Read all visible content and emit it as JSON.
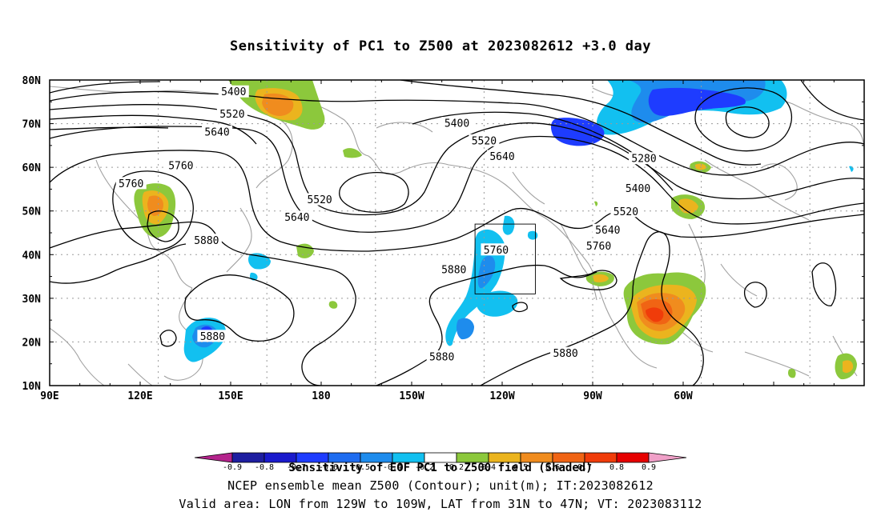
{
  "title": "Sensitivity of PC1 to Z500 at 2023082612 +3.0 day",
  "map": {
    "lat_labels": [
      "80N",
      "70N",
      "60N",
      "50N",
      "40N",
      "30N",
      "20N",
      "10N"
    ],
    "lon_labels": [
      "90E",
      "120E",
      "150E",
      "180",
      "150W",
      "120W",
      "90W",
      "60W"
    ],
    "contour_labels": [
      {
        "text": "5400",
        "lon": 151,
        "lat": 77.3
      },
      {
        "text": "5520",
        "lon": 150.5,
        "lat": 72.2
      },
      {
        "text": "5640",
        "lon": 145.5,
        "lat": 68.1
      },
      {
        "text": "5760",
        "lon": 133.5,
        "lat": 60.4
      },
      {
        "text": "5760",
        "lon": 117,
        "lat": 56.3
      },
      {
        "text": "5880",
        "lon": 142,
        "lat": 43.3
      },
      {
        "text": "5520",
        "lon": 179.5,
        "lat": 52.6
      },
      {
        "text": "5640",
        "lon": 172,
        "lat": 48.6
      },
      {
        "text": "5400",
        "lon": -135,
        "lat": 70.1
      },
      {
        "text": "5520",
        "lon": -126,
        "lat": 66.1
      },
      {
        "text": "5640",
        "lon": -120,
        "lat": 62.5
      },
      {
        "text": "5880",
        "lon": -136,
        "lat": 36.6
      },
      {
        "text": "5760",
        "lon": -122,
        "lat": 41.1
      },
      {
        "text": "5280",
        "lon": -73,
        "lat": 62.0
      },
      {
        "text": "5400",
        "lon": -75,
        "lat": 55.2
      },
      {
        "text": "5520",
        "lon": -79,
        "lat": 49.9
      },
      {
        "text": "5640",
        "lon": -85,
        "lat": 45.6
      },
      {
        "text": "5760",
        "lon": -88,
        "lat": 42.0
      },
      {
        "text": "5880",
        "lon": 144,
        "lat": 21.3
      },
      {
        "text": "5880",
        "lon": -140,
        "lat": 16.6
      },
      {
        "text": "5880",
        "lon": -99,
        "lat": 17.4
      }
    ],
    "valid_box": {
      "lon_from": -129,
      "lon_to": -109,
      "lat_from": 31,
      "lat_to": 47
    }
  },
  "colorbar": {
    "values": [
      "-0.9",
      "-0.8",
      "-0.7",
      "-0.6",
      "-0.5",
      "-0.4",
      "-0.2",
      "0.2",
      "0.4",
      "0.5",
      "0.6",
      "0.7",
      "0.8",
      "0.9"
    ],
    "colors": [
      "#1e1ea0",
      "#1a1acc",
      "#1e3cff",
      "#1e6cf0",
      "#1e8ced",
      "#12c0f0",
      "#ffffff",
      "#8cc83c",
      "#ebb41e",
      "#f08c1e",
      "#f06414",
      "#f03c0a",
      "#e60000"
    ],
    "under_color": "#b4238c",
    "over_color": "#f0a0c8",
    "caption": "Sensitivity of EOF PC1 to Z500 field (Shaded)"
  },
  "footer": {
    "line1": "NCEP ensemble mean Z500 (Contour); unit(m); IT:2023082612",
    "line2": "Valid area: LON from 129W to 109W, LAT from 31N to 47N; VT: 2023083112"
  }
}
